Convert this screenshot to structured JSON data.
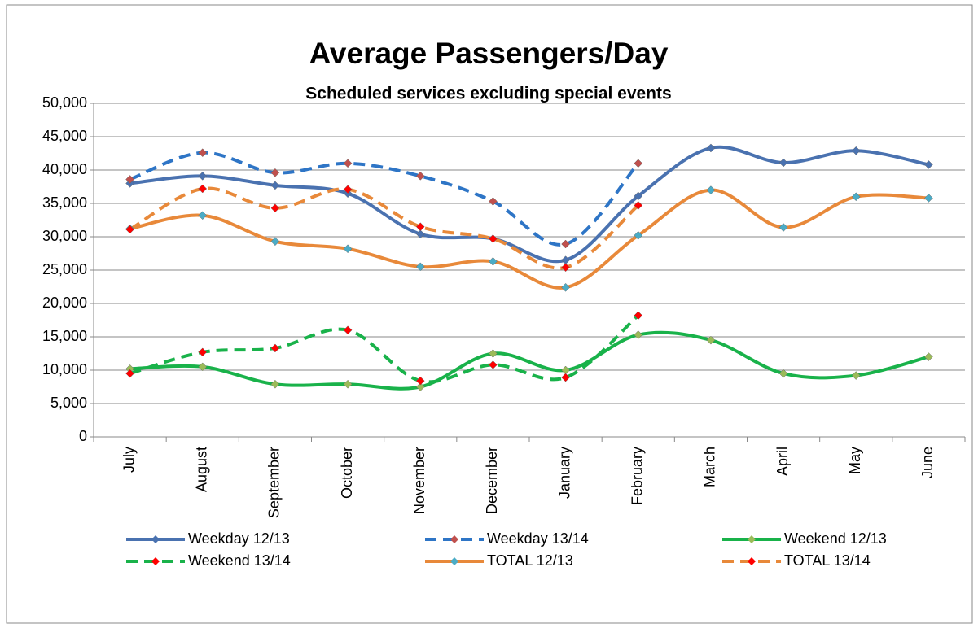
{
  "chart_data": {
    "type": "line",
    "title": "Average Passengers/Day",
    "subtitle": "Scheduled services excluding special events",
    "categories": [
      "July",
      "August",
      "September",
      "October",
      "November",
      "December",
      "January",
      "February",
      "March",
      "April",
      "May",
      "June"
    ],
    "ylim": [
      0,
      50000
    ],
    "yticks": [
      0,
      {
        "value": 5000,
        "label": "5,000"
      },
      {
        "value": 10000,
        "label": "10,000"
      },
      {
        "value": 15000,
        "label": "15,000"
      },
      {
        "value": 20000,
        "label": "20,000"
      },
      {
        "value": 25000,
        "label": "25,000"
      },
      {
        "value": 30000,
        "label": "30,000"
      },
      {
        "value": 35000,
        "label": "35,000"
      },
      {
        "value": 40000,
        "label": "40,000"
      },
      {
        "value": 45000,
        "label": "45,000"
      },
      {
        "value": 50000,
        "label": "50,000"
      }
    ],
    "grid": true,
    "smooth": true,
    "legend": "bottom",
    "series": [
      {
        "name": "Weekday 12/13",
        "color": "#4a72b0",
        "marker_color": "#4a72b0",
        "dashed": false,
        "values": [
          38000,
          39100,
          37700,
          36500,
          30400,
          29700,
          26500,
          36100,
          43300,
          41100,
          42900,
          40800
        ]
      },
      {
        "name": "Weekday 13/14",
        "color": "#2e75c6",
        "marker_color": "#c0504d",
        "dashed": true,
        "values": [
          38600,
          42600,
          39600,
          41000,
          39100,
          35300,
          28900,
          41000,
          null,
          null,
          null,
          null
        ]
      },
      {
        "name": "Weekend 12/13",
        "color": "#19b24a",
        "marker_color": "#9bbb59",
        "dashed": false,
        "values": [
          10200,
          10500,
          7900,
          7900,
          7500,
          12500,
          10000,
          15300,
          14500,
          9500,
          9200,
          12000
        ]
      },
      {
        "name": "Weekend 13/14",
        "color": "#19b24a",
        "marker_color": "#ff0000",
        "dashed": true,
        "values": [
          9500,
          12700,
          13300,
          16000,
          8400,
          10800,
          8900,
          18200,
          null,
          null,
          null,
          null
        ]
      },
      {
        "name": "TOTAL 12/13",
        "color": "#e8893a",
        "marker_color": "#4bacc6",
        "dashed": false,
        "values": [
          31200,
          33200,
          29300,
          28200,
          25500,
          26300,
          22400,
          30200,
          37000,
          31400,
          36000,
          35800
        ]
      },
      {
        "name": "TOTAL 13/14",
        "color": "#e8893a",
        "marker_color": "#ff0000",
        "dashed": true,
        "values": [
          31100,
          37200,
          34300,
          37100,
          31500,
          29700,
          25400,
          34700,
          null,
          null,
          null,
          null
        ]
      }
    ]
  }
}
